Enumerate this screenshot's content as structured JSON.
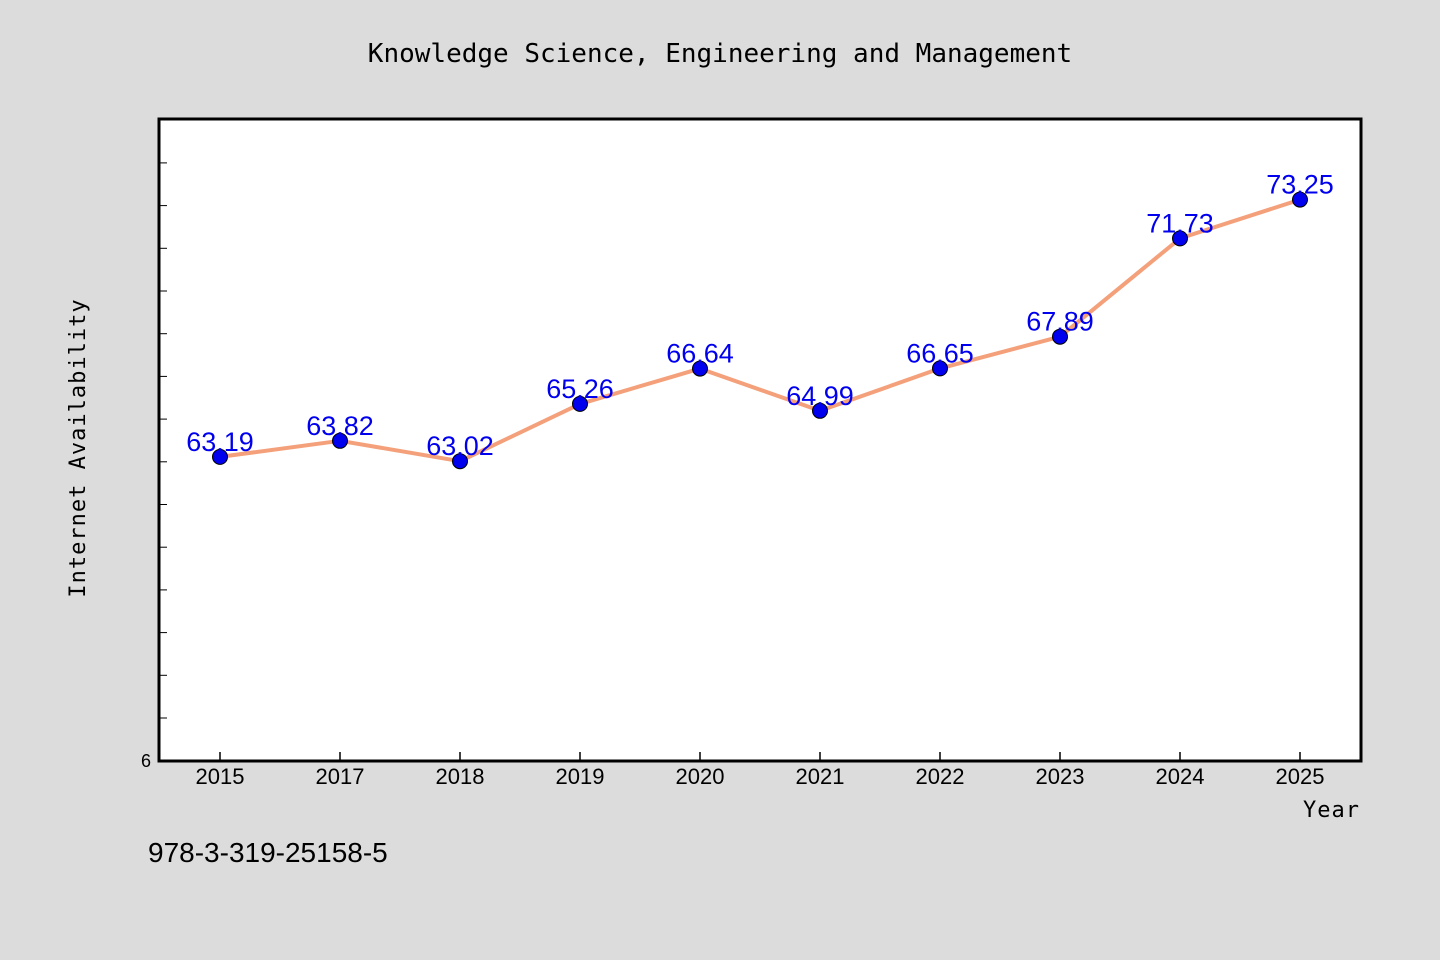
{
  "chart_data": {
    "type": "line",
    "title": "Knowledge Science, Engineering and Management",
    "xlabel": "Year",
    "ylabel": "Internet Availability",
    "categories": [
      "2015",
      "2017",
      "2018",
      "2019",
      "2020",
      "2021",
      "2022",
      "2023",
      "2024",
      "2025"
    ],
    "series": [
      {
        "values": [
          63.19,
          63.82,
          63.02,
          65.26,
          66.64,
          64.99,
          66.65,
          67.89,
          71.73,
          73.25
        ]
      }
    ],
    "data_labels": [
      "63.19",
      "63.82",
      "63.02",
      "65.26",
      "66.64",
      "64.99",
      "66.65",
      "67.89",
      "71.73",
      "73.25"
    ],
    "ylim": [
      51.3,
      76.4
    ],
    "y_tick_labels": [
      "6"
    ],
    "grid": false,
    "legend": "none",
    "colors": {
      "line": "#f4a07a",
      "marker": "#0000ee",
      "label": "#0000ee",
      "background": "#dcdcdc",
      "plot_area": "#ffffff"
    }
  },
  "footer_text": "978-3-319-25158-5"
}
